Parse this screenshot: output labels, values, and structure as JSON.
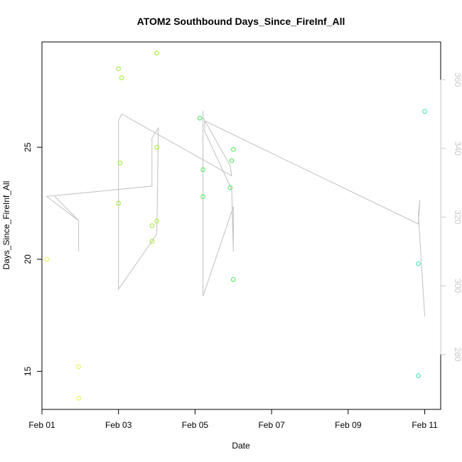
{
  "chart_data": {
    "type": "scatter",
    "title": "ATOM2 Southbound Days_Since_FireInf_All",
    "xlabel": "Date",
    "ylabel": "Days_Since_FireInf_All",
    "xlim": [
      "2024-02-01T00:00",
      "2024-02-11T10:00"
    ],
    "ylim": [
      13.3,
      29.7
    ],
    "y2lim": [
      264,
      371
    ],
    "x_tick_labels": [
      "Feb 01",
      "Feb 03",
      "Feb 05",
      "Feb 07",
      "Feb 09",
      "Feb 11"
    ],
    "x_ticks": [
      "2024-02-01T00:00",
      "2024-02-03T00:00",
      "2024-02-05T00:00",
      "2024-02-07T00:00",
      "2024-02-09T00:00",
      "2024-02-11T00:00"
    ],
    "y_ticks": [
      15,
      20,
      25
    ],
    "y_tick_labels": [
      "15",
      "20",
      "25"
    ],
    "y2_ticks": [
      280,
      300,
      320,
      340,
      360
    ],
    "y2_tick_labels": [
      "280",
      "300",
      "320",
      "340",
      "360"
    ],
    "grid": false,
    "legend": "none",
    "points": [
      {
        "x": "2024-02-01T03:00",
        "y": 20.0,
        "color": "#e6f044"
      },
      {
        "x": "2024-02-01T23:00",
        "y": 15.2,
        "color": "#e6f044"
      },
      {
        "x": "2024-02-01T23:00",
        "y": 13.8,
        "color": "#e6f044"
      },
      {
        "x": "2024-02-03T00:00",
        "y": 28.5,
        "color": "#9eee2a"
      },
      {
        "x": "2024-02-03T02:00",
        "y": 28.1,
        "color": "#9eee2a"
      },
      {
        "x": "2024-02-03T01:00",
        "y": 24.3,
        "color": "#9eee2a"
      },
      {
        "x": "2024-02-03T00:00",
        "y": 22.5,
        "color": "#9eee2a"
      },
      {
        "x": "2024-02-04T00:00",
        "y": 29.2,
        "color": "#9eee2a"
      },
      {
        "x": "2024-02-04T00:00",
        "y": 25.0,
        "color": "#9eee2a"
      },
      {
        "x": "2024-02-03T21:00",
        "y": 21.5,
        "color": "#9eee2a"
      },
      {
        "x": "2024-02-04T00:00",
        "y": 21.7,
        "color": "#9eee2a"
      },
      {
        "x": "2024-02-03T21:00",
        "y": 20.8,
        "color": "#9eee2a"
      },
      {
        "x": "2024-02-05T03:00",
        "y": 26.3,
        "color": "#44ea55"
      },
      {
        "x": "2024-02-05T05:00",
        "y": 24.0,
        "color": "#44ea55"
      },
      {
        "x": "2024-02-05T05:00",
        "y": 22.8,
        "color": "#44ea55"
      },
      {
        "x": "2024-02-06T00:00",
        "y": 24.9,
        "color": "#44ea55"
      },
      {
        "x": "2024-02-05T23:00",
        "y": 24.4,
        "color": "#44ea55"
      },
      {
        "x": "2024-02-05T22:00",
        "y": 23.2,
        "color": "#44ea55"
      },
      {
        "x": "2024-02-06T00:00",
        "y": 19.1,
        "color": "#44ea55"
      },
      {
        "x": "2024-02-11T00:00",
        "y": 26.6,
        "color": "#2ee8b0"
      },
      {
        "x": "2024-02-10T20:00",
        "y": 19.8,
        "color": "#2ee8b0"
      },
      {
        "x": "2024-02-10T20:00",
        "y": 14.8,
        "color": "#2ee8b0"
      }
    ],
    "secondary_line": {
      "axis": "right",
      "color": "#c0c0c0",
      "points": [
        {
          "x": "2024-02-01T08:00",
          "y": 326
        },
        {
          "x": "2024-02-01T23:00",
          "y": 319
        },
        {
          "x": "2024-02-01T23:00",
          "y": 310
        },
        {
          "x": "2024-02-01T23:00",
          "y": 319
        },
        {
          "x": "2024-02-01T03:00",
          "y": 326
        },
        {
          "x": "2024-02-03T21:00",
          "y": 329
        },
        {
          "x": "2024-02-03T21:00",
          "y": 343
        },
        {
          "x": "2024-02-04T01:00",
          "y": 346
        },
        {
          "x": "2024-02-04T00:00",
          "y": 315
        },
        {
          "x": "2024-02-03T00:00",
          "y": 299
        },
        {
          "x": "2024-02-03T00:00",
          "y": 348
        },
        {
          "x": "2024-02-03T02:00",
          "y": 350
        },
        {
          "x": "2024-02-05T23:00",
          "y": 332
        },
        {
          "x": "2024-02-05T22:00",
          "y": 335
        },
        {
          "x": "2024-02-05T05:00",
          "y": 349
        },
        {
          "x": "2024-02-05T05:00",
          "y": 351
        },
        {
          "x": "2024-02-05T05:00",
          "y": 297
        },
        {
          "x": "2024-02-06T00:00",
          "y": 323
        },
        {
          "x": "2024-02-06T00:00",
          "y": 310
        },
        {
          "x": "2024-02-05T23:00",
          "y": 328
        },
        {
          "x": "2024-02-05T06:00",
          "y": 345
        },
        {
          "x": "2024-02-05T06:00",
          "y": 348
        },
        {
          "x": "2024-02-10T20:00",
          "y": 318
        },
        {
          "x": "2024-02-10T21:00",
          "y": 325
        },
        {
          "x": "2024-02-10T20:00",
          "y": 321
        },
        {
          "x": "2024-02-11T00:00",
          "y": 291
        }
      ]
    }
  }
}
